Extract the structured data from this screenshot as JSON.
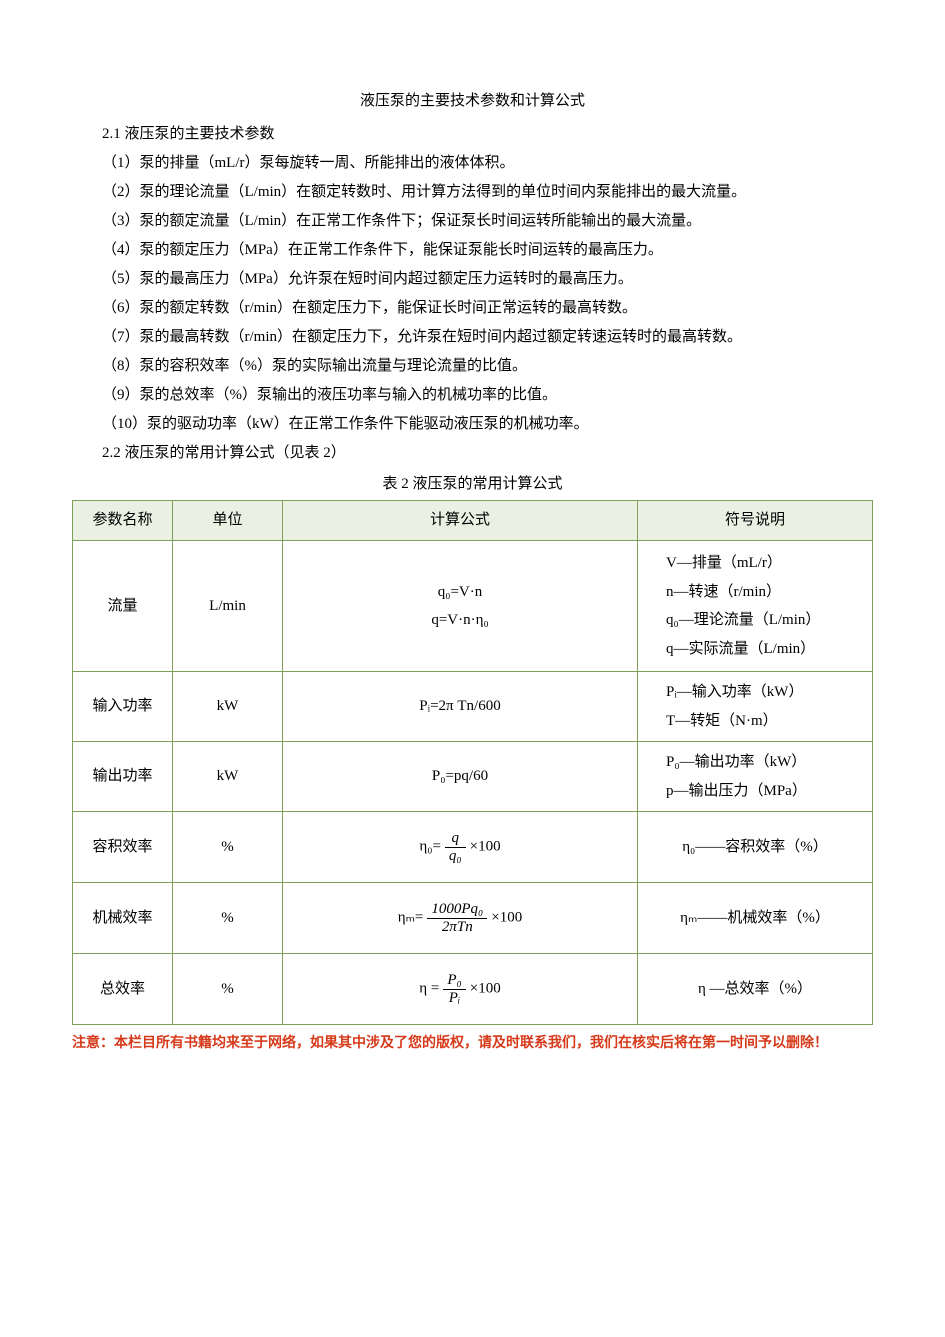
{
  "colors": {
    "text": "#000000",
    "table_border": "#7fa05a",
    "header_bg": "#eaf1e3",
    "note_text": "#d63a1a",
    "background": "#ffffff"
  },
  "fontsizes": {
    "body": 15,
    "sub": 10,
    "note": 14
  },
  "title": "液压泵的主要技术参数和计算公式",
  "section21": "2.1 液压泵的主要技术参数",
  "items": {
    "i1": "（1）泵的排量（mL/r）泵每旋转一周、所能排出的液体体积。",
    "i2": "（2）泵的理论流量（L/min）在额定转数时、用计算方法得到的单位时间内泵能排出的最大流量。",
    "i3": "（3）泵的额定流量（L/min）在正常工作条件下；保证泵长时间运转所能输出的最大流量。",
    "i4": "（4）泵的额定压力（MPa）在正常工作条件下，能保证泵能长时间运转的最高压力。",
    "i5": "（5）泵的最高压力（MPa）允许泵在短时间内超过额定压力运转时的最高压力。",
    "i6": "（6）泵的额定转数（r/min）在额定压力下，能保证长时间正常运转的最高转数。",
    "i7": "（7）泵的最高转数（r/min）在额定压力下，允许泵在短时间内超过额定转速运转时的最高转数。",
    "i8": "（8）泵的容积效率（%）泵的实际输出流量与理论流量的比值。",
    "i9": "（9）泵的总效率（%）泵输出的液压功率与输入的机械功率的比值。",
    "i10": "（10）泵的驱动功率（kW）在正常工作条件下能驱动液压泵的机械功率。"
  },
  "section22": "2.2 液压泵的常用计算公式（见表 2）",
  "table_caption": "表 2 液压泵的常用计算公式",
  "table": {
    "headers": {
      "name": "参数名称",
      "unit": "单位",
      "formula": "计算公式",
      "desc": "符号说明"
    },
    "col_widths": {
      "name": 100,
      "unit": 110,
      "formula": "auto",
      "desc": 235
    },
    "rows": [
      {
        "name": "流量",
        "unit": "L/min",
        "formula_lines": [
          "q₀=V·n",
          "q=V·n·η₀"
        ],
        "desc_lines": [
          "V—排量（mL/r）",
          "n—转速（r/min）",
          "q₀—理论流量（L/min）",
          "q—实际流量（L/min）"
        ]
      },
      {
        "name": "输入功率",
        "unit": "kW",
        "formula_lines": [
          "Pᵢ=2π Tn/600"
        ],
        "desc_lines": [
          "Pᵢ—输入功率（kW）",
          "T—转矩（N·m）"
        ]
      },
      {
        "name": "输出功率",
        "unit": "kW",
        "formula_lines": [
          "P₀=pq/60"
        ],
        "desc_lines": [
          "P₀—输出功率（kW）",
          "p—输出压力（MPa）"
        ]
      },
      {
        "name": "容积效率",
        "unit": "%",
        "formula_frac": {
          "prefix": "η₀=",
          "num": "q",
          "den": "q₀",
          "suffix": "×100"
        },
        "desc_center": "η₀——容积效率（%）"
      },
      {
        "name": "机械效率",
        "unit": "%",
        "formula_frac": {
          "prefix": "ηₘ=",
          "num": "1000Pq₀",
          "den": "2πTn",
          "suffix": "×100"
        },
        "desc_center": "ηₘ——机械效率（%）"
      },
      {
        "name": "总效率",
        "unit": "%",
        "formula_frac": {
          "prefix": "η =",
          "num": "P₀",
          "den": "Pᵢ",
          "suffix": "×100"
        },
        "desc_center": "η —总效率（%）"
      }
    ]
  },
  "note": "注意：本栏目所有书籍均来至于网络，如果其中涉及了您的版权，请及时联系我们，我们在核实后将在第一时间予以删除！"
}
